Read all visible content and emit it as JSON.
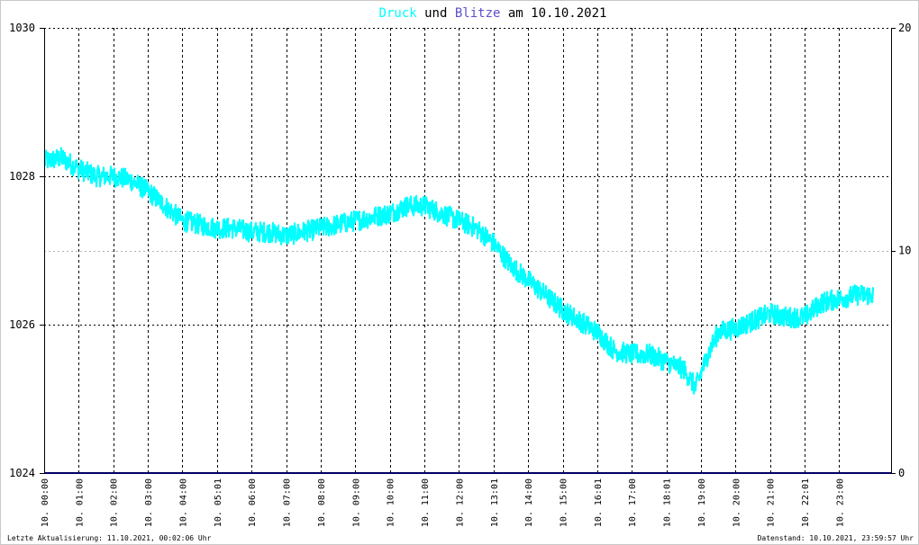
{
  "title": {
    "part1": "Druck",
    "part2": " und ",
    "part3": "Blitze",
    "part4": " am 10.10.2021"
  },
  "colors": {
    "pressure": "#00ffff",
    "lightning": "#5a4fcf",
    "title_text": "#000000",
    "baseline": "#000066"
  },
  "footer": {
    "left": "Letzte Aktualisierung: 11.10.2021, 00:02:06 Uhr",
    "right": "Datenstand: 10.10.2021, 23:59:57 Uhr"
  },
  "chart_data": {
    "type": "line",
    "title": "Druck und Blitze am 10.10.2021",
    "grid": true,
    "y_left": {
      "min": 1024,
      "max": 1030,
      "ticks": [
        "1024",
        "1026",
        "1028",
        "1030"
      ]
    },
    "y_right": {
      "min": 0,
      "max": 20,
      "ticks": [
        "0",
        "10",
        "20"
      ]
    },
    "x_range_hours": [
      0,
      24.5
    ],
    "x_ticks": [
      {
        "label": "10. 00:00",
        "h": 0
      },
      {
        "label": "10. 01:00",
        "h": 1
      },
      {
        "label": "10. 02:00",
        "h": 2
      },
      {
        "label": "10. 03:00",
        "h": 3
      },
      {
        "label": "10. 04:00",
        "h": 4
      },
      {
        "label": "10. 05:01",
        "h": 5
      },
      {
        "label": "10. 06:00",
        "h": 6
      },
      {
        "label": "10. 07:00",
        "h": 7
      },
      {
        "label": "10. 08:00",
        "h": 8
      },
      {
        "label": "10. 09:00",
        "h": 9
      },
      {
        "label": "10. 10:00",
        "h": 10
      },
      {
        "label": "10. 11:00",
        "h": 11
      },
      {
        "label": "10. 12:00",
        "h": 12
      },
      {
        "label": "10. 13:01",
        "h": 13
      },
      {
        "label": "10. 14:00",
        "h": 14
      },
      {
        "label": "10. 15:00",
        "h": 15
      },
      {
        "label": "10. 16:01",
        "h": 16
      },
      {
        "label": "10. 17:00",
        "h": 17
      },
      {
        "label": "10. 18:01",
        "h": 18
      },
      {
        "label": "10. 19:00",
        "h": 19
      },
      {
        "label": "10. 20:00",
        "h": 20
      },
      {
        "label": "10. 21:00",
        "h": 21
      },
      {
        "label": "10. 22:01",
        "h": 22
      },
      {
        "label": "10. 23:00",
        "h": 23
      }
    ],
    "series": [
      {
        "name": "Druck",
        "axis": "left",
        "points": [
          [
            0,
            1028.2
          ],
          [
            0.5,
            1028.25
          ],
          [
            1.0,
            1028.1
          ],
          [
            1.5,
            1028.0
          ],
          [
            2.0,
            1028.0
          ],
          [
            2.5,
            1027.95
          ],
          [
            3.0,
            1027.8
          ],
          [
            3.5,
            1027.6
          ],
          [
            4.0,
            1027.4
          ],
          [
            4.5,
            1027.35
          ],
          [
            5.0,
            1027.3
          ],
          [
            5.5,
            1027.3
          ],
          [
            6.0,
            1027.25
          ],
          [
            6.5,
            1027.25
          ],
          [
            7.0,
            1027.2
          ],
          [
            7.5,
            1027.25
          ],
          [
            8.0,
            1027.3
          ],
          [
            8.5,
            1027.35
          ],
          [
            9.0,
            1027.4
          ],
          [
            9.5,
            1027.45
          ],
          [
            10.0,
            1027.5
          ],
          [
            10.5,
            1027.6
          ],
          [
            11.0,
            1027.6
          ],
          [
            11.5,
            1027.5
          ],
          [
            12.0,
            1027.4
          ],
          [
            12.5,
            1027.3
          ],
          [
            13.0,
            1027.1
          ],
          [
            13.5,
            1026.8
          ],
          [
            14.0,
            1026.6
          ],
          [
            14.5,
            1026.4
          ],
          [
            15.0,
            1026.2
          ],
          [
            15.5,
            1026.05
          ],
          [
            16.0,
            1025.9
          ],
          [
            16.5,
            1025.65
          ],
          [
            17.0,
            1025.6
          ],
          [
            17.5,
            1025.6
          ],
          [
            18.0,
            1025.5
          ],
          [
            18.5,
            1025.4
          ],
          [
            18.85,
            1025.15
          ],
          [
            19.2,
            1025.6
          ],
          [
            19.5,
            1025.9
          ],
          [
            20.0,
            1025.95
          ],
          [
            20.5,
            1026.05
          ],
          [
            21.0,
            1026.15
          ],
          [
            21.5,
            1026.1
          ],
          [
            22.0,
            1026.1
          ],
          [
            22.5,
            1026.3
          ],
          [
            23.0,
            1026.35
          ],
          [
            23.5,
            1026.4
          ],
          [
            24.0,
            1026.4
          ]
        ]
      },
      {
        "name": "Blitze",
        "axis": "right",
        "points": [
          [
            0,
            0
          ],
          [
            24.5,
            0
          ]
        ]
      }
    ]
  }
}
